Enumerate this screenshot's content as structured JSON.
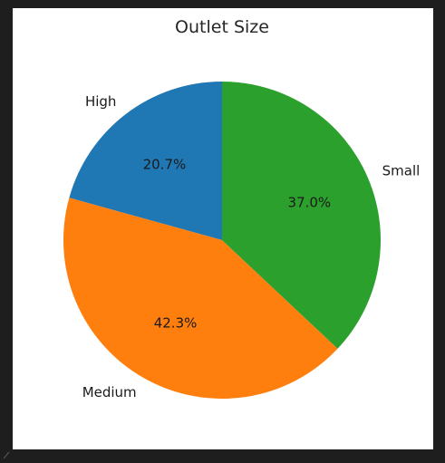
{
  "chart_data": {
    "type": "pie",
    "title": "Outlet Size",
    "categories": [
      "High",
      "Medium",
      "Small"
    ],
    "values": [
      20.7,
      42.3,
      37.0
    ],
    "value_labels": [
      "20.7%",
      "42.3%",
      "37.0%"
    ],
    "colors": [
      "#1f77b4",
      "#ff7f0e",
      "#2ca02c"
    ],
    "start_angle_deg": 90,
    "direction": "counterclockwise",
    "legend": "none"
  }
}
